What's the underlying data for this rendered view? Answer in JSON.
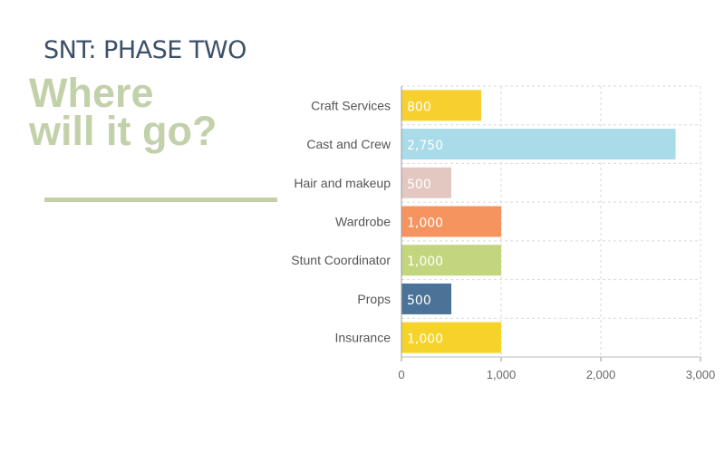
{
  "header": {
    "kicker": "SNT: PHASE TWO",
    "headline_line1": "Where",
    "headline_line2": "will it go?"
  },
  "colors": {
    "accent": "#c3d1ab",
    "kicker": "#3d5068",
    "grid": "#d9d9d9"
  },
  "chart_data": {
    "type": "bar",
    "orientation": "horizontal",
    "title": "",
    "xlabel": "",
    "ylabel": "",
    "categories": [
      "Craft Services",
      "Cast and Crew",
      "Hair and makeup",
      "Wardrobe",
      "Stunt Coordinator",
      "Props",
      "Insurance"
    ],
    "values": [
      800,
      2750,
      500,
      1000,
      1000,
      500,
      1000
    ],
    "data_labels": [
      "800",
      "2,750",
      "500",
      "1,000",
      "1,000",
      "500",
      "1,000"
    ],
    "bar_colors": [
      "#f7d02f",
      "#a9dbe9",
      "#e3c8c1",
      "#f69460",
      "#c3d67e",
      "#4a7397",
      "#f6d32a"
    ],
    "xlim": [
      0,
      3000
    ],
    "xticks": [
      0,
      1000,
      2000,
      3000
    ],
    "xtick_labels": [
      "0",
      "1,000",
      "2,000",
      "3,000"
    ],
    "grid": true,
    "legend": "none"
  }
}
